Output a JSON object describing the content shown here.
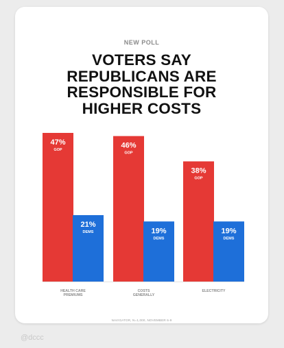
{
  "card": {
    "kicker": "NEW POLL",
    "headline_lines": [
      "VOTERS SAY",
      "REPUBLICANS ARE",
      "RESPONSIBLE FOR",
      "HIGHER COSTS"
    ],
    "footnote": "NAVIGATOR, N=1,000, NOVEMBER 6-9"
  },
  "watermark": "@dccc",
  "colors": {
    "gop": "#e53935",
    "dems": "#1e6fd9",
    "baseline": "#e2e2e2"
  },
  "chart_data": {
    "type": "bar",
    "categories": [
      [
        "HEALTH CARE",
        "PREMIUMS"
      ],
      [
        "COSTS",
        "GENERALLY"
      ],
      [
        "ELECTRICITY"
      ]
    ],
    "series": [
      {
        "name": "GOP",
        "values": [
          47,
          46,
          38
        ],
        "labels": [
          "47%",
          "46%",
          "38%"
        ]
      },
      {
        "name": "DEMS",
        "values": [
          21,
          19,
          19
        ],
        "labels": [
          "21%",
          "19%",
          "19%"
        ]
      }
    ],
    "title": "",
    "xlabel": "",
    "ylabel": "",
    "ylim": [
      0,
      47
    ]
  }
}
